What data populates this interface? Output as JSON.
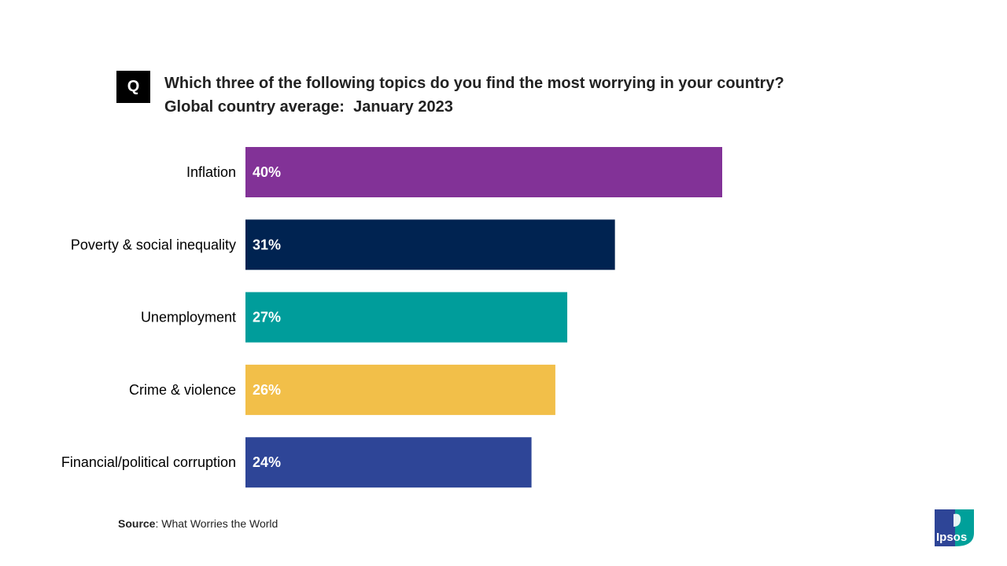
{
  "badge": "Q",
  "title": {
    "line1": "Which three of the following topics do you find the most worrying in your country?",
    "line2": "Global country average:  January 2023"
  },
  "chart_data": {
    "type": "bar",
    "orientation": "horizontal",
    "title": "Which three of the following topics do you find the most worrying in your country? Global country average: January 2023",
    "xlabel": "",
    "ylabel": "",
    "xlim": [
      0,
      40
    ],
    "unit": "%",
    "grid": false,
    "categories": [
      "Inflation",
      "Poverty & social inequality",
      "Unemployment",
      "Crime & violence",
      "Financial/political corruption"
    ],
    "values": [
      40,
      31,
      27,
      26,
      24
    ],
    "labels": [
      "40%",
      "31%",
      "27%",
      "26%",
      "24%"
    ],
    "colors": [
      "#823297",
      "#002351",
      "#009D9B",
      "#F2BF49",
      "#2E4597"
    ]
  },
  "source": {
    "label": "Source",
    "text": ": What Worries the World"
  },
  "logo": {
    "text": "Ipsos",
    "colors": {
      "left": "#2E4597",
      "right": "#00A09A"
    }
  }
}
